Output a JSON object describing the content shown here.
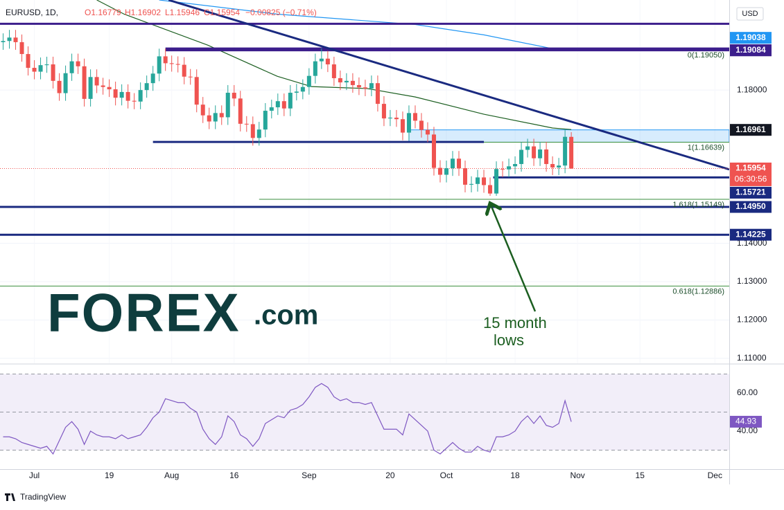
{
  "header": {
    "symbol": "EURUSD, 1D,",
    "open": "O1.16779",
    "high": "H1.16902",
    "low": "L1.15946",
    "close": "C1.15954",
    "change": "−0.00825 (−0.71%)"
  },
  "logo": {
    "brand": "FOREX",
    "suffix": ".com"
  },
  "footer": "TradingView",
  "chart_data": [
    {
      "type": "candlestick",
      "up_color": "#26a69a",
      "down_color": "#ef5350",
      "open": [
        1.1925,
        1.1928,
        1.1937,
        1.1925,
        1.1894,
        1.1858,
        1.1848,
        1.1865,
        1.1867,
        1.1824,
        1.1792,
        1.1844,
        1.1875,
        1.1862,
        1.1777,
        1.1834,
        1.1812,
        1.1808,
        1.1802,
        1.178,
        1.1795,
        1.1772,
        1.177,
        1.18,
        1.1818,
        1.1843,
        1.1888,
        1.187,
        1.1868,
        1.1866,
        1.1835,
        1.1834,
        1.1762,
        1.1734,
        1.1718,
        1.174,
        1.1729,
        1.1793,
        1.1778,
        1.1712,
        1.1711,
        1.1675,
        1.1697,
        1.1746,
        1.1755,
        1.1771,
        1.1752,
        1.1793,
        1.1796,
        1.1808,
        1.1837,
        1.1875,
        1.1882,
        1.1867,
        1.1831,
        1.182,
        1.1824,
        1.1813,
        1.1807,
        1.1804,
        1.1818,
        1.1764,
        1.1726,
        1.1728,
        1.1724,
        1.1689,
        1.174,
        1.172,
        1.1696,
        1.1684,
        1.1597,
        1.1579,
        1.1596,
        1.1621,
        1.1596,
        1.1553,
        1.1555,
        1.1572,
        1.1552,
        1.153,
        1.1594,
        1.1593,
        1.1601,
        1.1607,
        1.1644,
        1.1653,
        1.1622,
        1.1645,
        1.1607,
        1.1598,
        1.1603,
        1.16779
      ],
      "high": [
        1.1948,
        1.1957,
        1.1957,
        1.1945,
        1.1914,
        1.1878,
        1.1885,
        1.1887,
        1.1887,
        1.1844,
        1.1864,
        1.1895,
        1.1895,
        1.1882,
        1.1854,
        1.1854,
        1.1832,
        1.1828,
        1.1822,
        1.1815,
        1.1815,
        1.1792,
        1.182,
        1.1838,
        1.1863,
        1.1908,
        1.1908,
        1.189,
        1.1888,
        1.1886,
        1.1855,
        1.1854,
        1.1782,
        1.1754,
        1.176,
        1.176,
        1.1813,
        1.1813,
        1.1798,
        1.1732,
        1.1731,
        1.1717,
        1.1766,
        1.1775,
        1.1791,
        1.1791,
        1.1813,
        1.1816,
        1.1828,
        1.1857,
        1.1895,
        1.1909,
        1.1902,
        1.1887,
        1.1851,
        1.1844,
        1.1844,
        1.1833,
        1.1827,
        1.1838,
        1.1838,
        1.1784,
        1.1748,
        1.1748,
        1.1744,
        1.176,
        1.176,
        1.174,
        1.1716,
        1.1704,
        1.1617,
        1.1616,
        1.1641,
        1.1641,
        1.1616,
        1.1575,
        1.1592,
        1.1592,
        1.1572,
        1.1614,
        1.1614,
        1.1621,
        1.1627,
        1.1664,
        1.1673,
        1.1673,
        1.1665,
        1.1665,
        1.1627,
        1.1623,
        1.1698,
        1.16902
      ],
      "low": [
        1.1905,
        1.1908,
        1.1905,
        1.1874,
        1.1838,
        1.1828,
        1.1828,
        1.1845,
        1.1804,
        1.1772,
        1.1772,
        1.1824,
        1.1842,
        1.1757,
        1.1757,
        1.1792,
        1.1788,
        1.1782,
        1.176,
        1.176,
        1.1752,
        1.175,
        1.175,
        1.178,
        1.1798,
        1.1823,
        1.185,
        1.1848,
        1.1846,
        1.1815,
        1.1814,
        1.1742,
        1.1714,
        1.1698,
        1.1698,
        1.1709,
        1.1709,
        1.1758,
        1.1692,
        1.1691,
        1.1655,
        1.1655,
        1.1677,
        1.1726,
        1.1735,
        1.1732,
        1.1732,
        1.1773,
        1.1776,
        1.1788,
        1.1817,
        1.1855,
        1.1847,
        1.1811,
        1.18,
        1.18,
        1.1793,
        1.1787,
        1.1784,
        1.1784,
        1.1744,
        1.1706,
        1.1706,
        1.1704,
        1.1669,
        1.1669,
        1.17,
        1.1676,
        1.1664,
        1.1577,
        1.1559,
        1.1559,
        1.1576,
        1.1576,
        1.1533,
        1.1533,
        1.1535,
        1.1532,
        1.1524,
        1.1524,
        1.1573,
        1.1573,
        1.1581,
        1.1587,
        1.1624,
        1.1602,
        1.1602,
        1.1587,
        1.1578,
        1.1578,
        1.1583,
        1.15946
      ],
      "close": [
        1.1928,
        1.1937,
        1.1925,
        1.1894,
        1.1858,
        1.1848,
        1.1865,
        1.1867,
        1.1824,
        1.1792,
        1.1844,
        1.1875,
        1.1862,
        1.1777,
        1.1834,
        1.1812,
        1.1808,
        1.1802,
        1.178,
        1.1795,
        1.1772,
        1.177,
        1.18,
        1.1818,
        1.1843,
        1.1888,
        1.187,
        1.1868,
        1.1866,
        1.1835,
        1.1834,
        1.1762,
        1.1734,
        1.1718,
        1.174,
        1.1729,
        1.1793,
        1.1778,
        1.1712,
        1.1711,
        1.1675,
        1.1697,
        1.1746,
        1.1755,
        1.1771,
        1.1752,
        1.1793,
        1.1796,
        1.1808,
        1.1837,
        1.1875,
        1.1882,
        1.1867,
        1.1831,
        1.182,
        1.1824,
        1.1813,
        1.1807,
        1.1804,
        1.1818,
        1.1764,
        1.1726,
        1.1728,
        1.1724,
        1.1689,
        1.174,
        1.172,
        1.1696,
        1.1684,
        1.1597,
        1.1579,
        1.1596,
        1.1621,
        1.1596,
        1.1553,
        1.1555,
        1.1572,
        1.1552,
        1.153,
        1.1594,
        1.1593,
        1.1601,
        1.1607,
        1.1644,
        1.1653,
        1.1622,
        1.1645,
        1.1607,
        1.1598,
        1.1603,
        1.1678,
        1.15954
      ],
      "countdown": "06:30:56",
      "currency": "USD",
      "moving_averages": [
        {
          "color": "#1b5e20",
          "x": [
            15,
            19.4,
            32.8,
            43.9,
            49.4,
            58.3,
            66,
            77,
            88,
            91
          ],
          "values": [
            1.2035,
            1.1998,
            1.1917,
            1.1836,
            1.1809,
            1.1804,
            1.1782,
            1.1737,
            1.1701,
            1.1697
          ]
        },
        {
          "color": "#2196f3",
          "x": [
            25,
            44,
            66,
            77,
            88,
            91
          ],
          "values": [
            1.2035,
            1.1998,
            1.1971,
            1.1944,
            1.1908,
            1.19038
          ]
        }
      ],
      "trendline": {
        "color": "#1a2a80",
        "x": [
          26.5,
          116.3
        ],
        "values": [
          1.2035,
          1.1593
        ]
      },
      "zone": {
        "color": "#2196f3",
        "from": 65,
        "values": [
          1.1664,
          1.16961
        ]
      },
      "levels": [
        {
          "value": 1.1973,
          "color": "#3c1e8c",
          "from": -0.5
        },
        {
          "value": 1.19084,
          "label": "1.19084",
          "color": "#3c1e8c",
          "from": 26
        },
        {
          "value": 1.19038,
          "label": "1.19038",
          "color": "#3c1e8c",
          "from": 26
        },
        {
          "value": 1.16647,
          "color": "#1a2a80",
          "from": 24,
          "to": 77
        },
        {
          "value": 1.15721,
          "label": "1.15721",
          "color": "#1a2a80",
          "from": 78.5
        },
        {
          "value": 1.1495,
          "label": "1.14950",
          "color": "#1a2a80",
          "from": -0.5
        },
        {
          "value": 1.14225,
          "label": "1.14225",
          "color": "#1a2a80",
          "from": -0.5
        }
      ],
      "fib": [
        {
          "value": 1.1905,
          "label": "0(1.19050)",
          "from": 26
        },
        {
          "value": 1.16639,
          "label": "1(1.16639)",
          "from": 65
        },
        {
          "value": 1.15149,
          "label": "1.618(1.15149)",
          "from": 41
        },
        {
          "value": 1.12886,
          "label": "0.618(1.12886)",
          "from": -0.5
        }
      ],
      "annotation": [
        "15 month",
        "lows"
      ],
      "xlim": [
        -0.5,
        116.3
      ],
      "xticks": [
        {
          "value": 5,
          "label": "Jul"
        },
        {
          "value": 17,
          "label": "19"
        },
        {
          "value": 27,
          "label": "Aug"
        },
        {
          "value": 37,
          "label": "16"
        },
        {
          "value": 49,
          "label": "Sep"
        },
        {
          "value": 62,
          "label": "20"
        },
        {
          "value": 71,
          "label": "Oct"
        },
        {
          "value": 82,
          "label": "18"
        },
        {
          "value": 92,
          "label": "Nov"
        },
        {
          "value": 102,
          "label": "15"
        },
        {
          "value": 114,
          "label": "Dec"
        }
      ],
      "ylim": [
        1.1087,
        1.2035
      ],
      "yticks": [
        {
          "value": 1.18,
          "label": "1.18000"
        },
        {
          "value": 1.14,
          "label": "1.14000"
        },
        {
          "value": 1.13,
          "label": "1.13000"
        },
        {
          "value": 1.12,
          "label": "1.12000"
        },
        {
          "value": 1.11,
          "label": "1.11000"
        }
      ],
      "grid": true
    },
    {
      "type": "line",
      "series": [
        {
          "color": "#7e57c2",
          "values": [
            37,
            37,
            36,
            34,
            33,
            32,
            31,
            32,
            28,
            35,
            42,
            45,
            41,
            33,
            40,
            38,
            37,
            37,
            36,
            38,
            36,
            37,
            38,
            42,
            47,
            50,
            57,
            56,
            55,
            55,
            52,
            50,
            41,
            36,
            33,
            37,
            48,
            45,
            38,
            36,
            32,
            36,
            44,
            46,
            48,
            47,
            51,
            52,
            54,
            58,
            63,
            65,
            63,
            58,
            56,
            57,
            55,
            55,
            54,
            55,
            48,
            41,
            41,
            41,
            38,
            49,
            46,
            43,
            40,
            30,
            28,
            31,
            34,
            31,
            29,
            29,
            32,
            30,
            29,
            37,
            37,
            38,
            40,
            45,
            48,
            44,
            48,
            43,
            42,
            44,
            56,
            44.93
          ]
        }
      ],
      "bands": [
        30,
        70
      ],
      "midline": 50,
      "ylim": [
        20,
        74.9
      ],
      "yticks": [
        {
          "value": 60,
          "label": "60.00"
        },
        {
          "value": 40,
          "label": "40.00"
        }
      ]
    }
  ]
}
